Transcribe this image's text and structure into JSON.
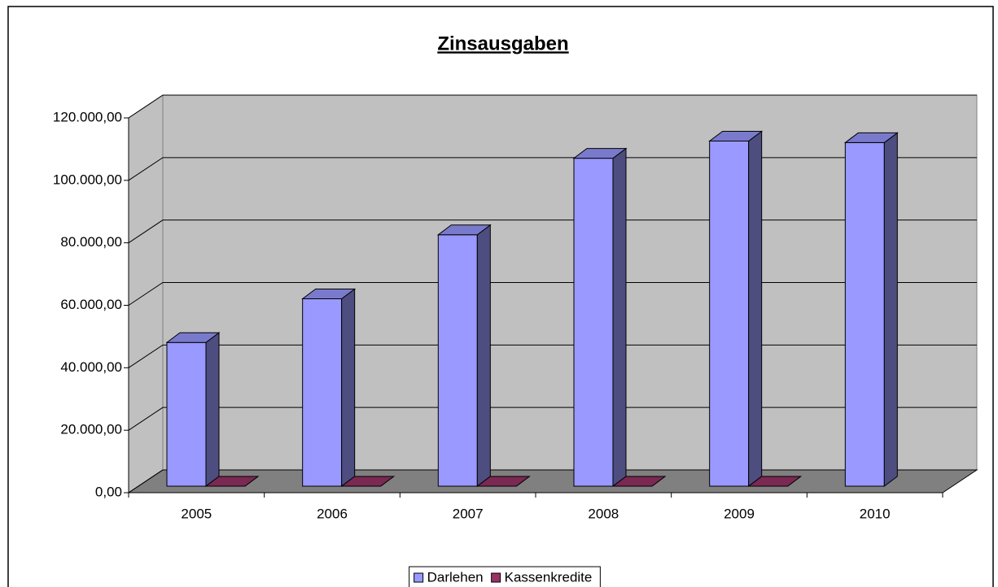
{
  "chart_data": {
    "type": "bar3d",
    "title": "Zinsausgaben",
    "categories": [
      "2005",
      "2006",
      "2007",
      "2008",
      "2009",
      "2010"
    ],
    "series": [
      {
        "name": "Darlehen",
        "color": "#9999ff",
        "values": [
          46000,
          60000,
          80500,
          105000,
          110500,
          110000
        ]
      },
      {
        "name": "Kassenkredite",
        "color": "#993366",
        "values": [
          0,
          0,
          0,
          0,
          0,
          null
        ]
      }
    ],
    "ylim": [
      0,
      120000
    ],
    "yticks": [
      {
        "value": 0,
        "label": "0,00"
      },
      {
        "value": 20000,
        "label": "20.000,00"
      },
      {
        "value": 40000,
        "label": "40.000,00"
      },
      {
        "value": 60000,
        "label": "60.000,00"
      },
      {
        "value": 80000,
        "label": "80.000,00"
      },
      {
        "value": 100000,
        "label": "100.000,00"
      },
      {
        "value": 120000,
        "label": "120.000,00"
      }
    ],
    "grid": true,
    "legend": "bottom"
  }
}
